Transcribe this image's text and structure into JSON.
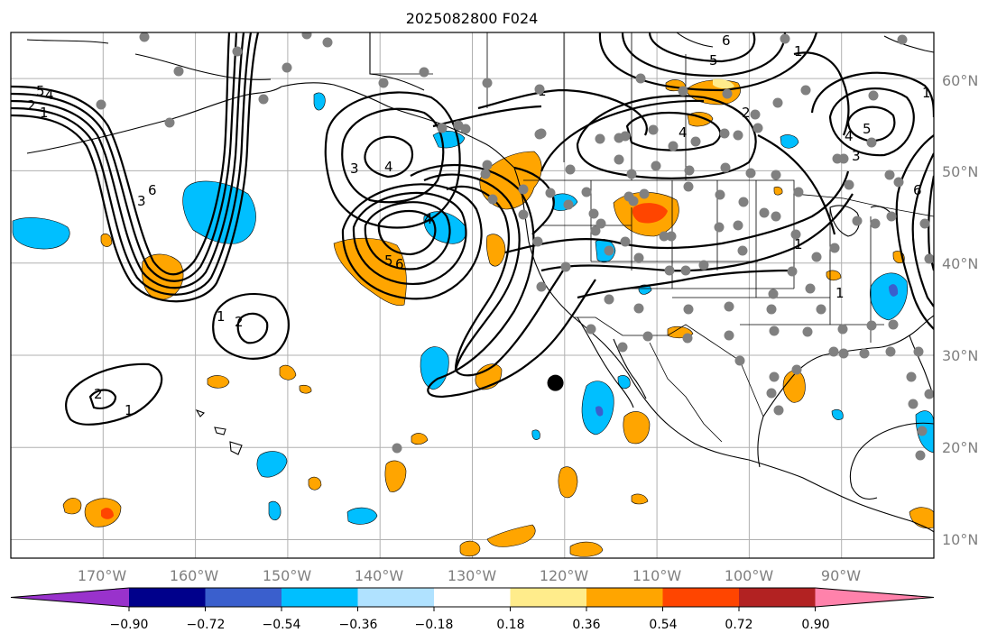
{
  "title": "2025082800 F024",
  "map": {
    "lon_range": [
      -180,
      -80
    ],
    "lat_range": [
      8,
      65
    ],
    "lon_ticks": [
      {
        "value": -170,
        "label": "170°W"
      },
      {
        "value": -160,
        "label": "160°W"
      },
      {
        "value": -150,
        "label": "150°W"
      },
      {
        "value": -140,
        "label": "140°W"
      },
      {
        "value": -130,
        "label": "130°W"
      },
      {
        "value": -120,
        "label": "120°W"
      },
      {
        "value": -110,
        "label": "110°W"
      },
      {
        "value": -100,
        "label": "100°W"
      },
      {
        "value": -90,
        "label": "90°W"
      }
    ],
    "lat_ticks": [
      {
        "value": 60,
        "label": "60°N"
      },
      {
        "value": 50,
        "label": "50°N"
      },
      {
        "value": 40,
        "label": "40°N"
      },
      {
        "value": 30,
        "label": "30°N"
      },
      {
        "value": 20,
        "label": "20°N"
      },
      {
        "value": 10,
        "label": "10°N"
      }
    ],
    "grid": true,
    "marker_point": {
      "lon": -121,
      "lat": 27
    },
    "contour_labels": [
      "5",
      "4",
      "2",
      "1",
      "6",
      "3",
      "4",
      "3",
      "4",
      "5",
      "6",
      "1",
      "2",
      "1",
      "2",
      "1",
      "1",
      "4",
      "2",
      "6",
      "5",
      "1",
      "5",
      "4",
      "3",
      "6",
      "1",
      "1"
    ]
  },
  "colorbar": {
    "colors": [
      "#9932cc",
      "#00008b",
      "#3a5fcd",
      "#00bfff",
      "#b0e2ff",
      "#ffffff",
      "#ffec8b",
      "#ffa500",
      "#ff4500",
      "#b22222",
      "#ff82ab"
    ],
    "tick_labels": [
      "−0.90",
      "−0.72",
      "−0.54",
      "−0.36",
      "−0.18",
      "0.18",
      "0.36",
      "0.54",
      "0.72",
      "0.90"
    ]
  },
  "colors": {
    "positive_fill": "#ffa500",
    "strong_positive_fill": "#ff4500",
    "negative_fill": "#00bfff",
    "station_dot": "#808080"
  }
}
